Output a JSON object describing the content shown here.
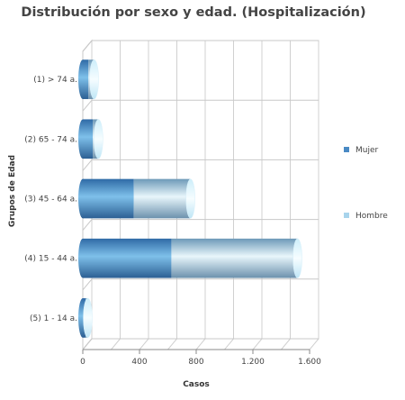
{
  "chart_data": {
    "type": "bar",
    "orientation": "horizontal",
    "stacked": true,
    "title": "Distribución por sexo y edad. (Hospitalización)",
    "xlabel": "Casos",
    "ylabel": "Grupos de Edad",
    "categories": [
      "(1) > 74 a.",
      "(2) 65 - 74 a.",
      "(3) 45 - 64 a.",
      "(4) 15 - 44 a.",
      "(5) 1 - 14 a."
    ],
    "series": [
      {
        "name": "Mujer",
        "values": [
          40,
          70,
          360,
          625,
          20
        ],
        "color": "#4a8ac4"
      },
      {
        "name": "Hombre",
        "values": [
          40,
          40,
          400,
          890,
          15
        ],
        "color": "#a8d4ec"
      }
    ],
    "xlim": [
      0,
      1600
    ],
    "xticks": [
      0,
      400,
      800,
      1200,
      1600
    ],
    "xtick_labels": [
      "0",
      "400",
      "800",
      "1.200",
      "1.600"
    ],
    "grid": true,
    "legend_position": "right"
  }
}
